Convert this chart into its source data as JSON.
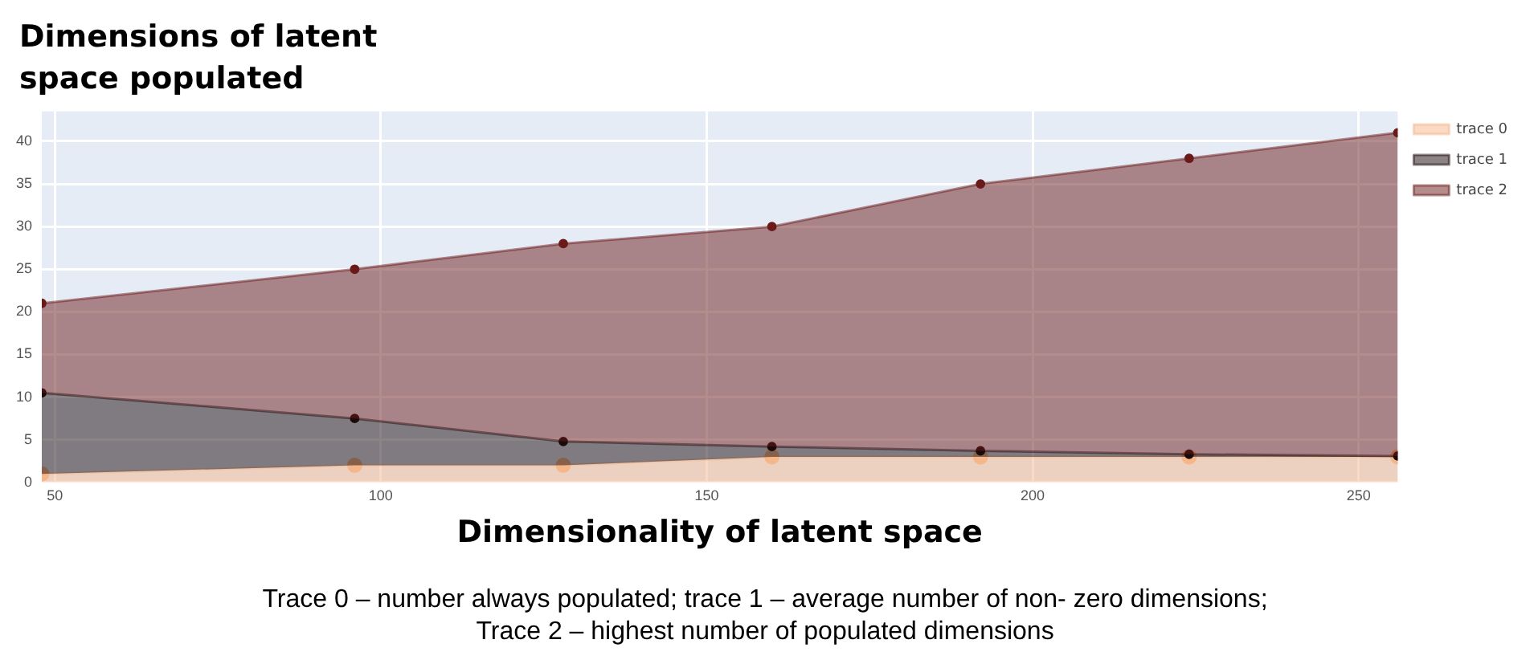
{
  "chart_data": {
    "type": "area",
    "title": "Dimensions of latent space populated",
    "xlabel": "Dimensionality of latent space",
    "annotations": [
      "Trace 0 – number always populated; trace 1  – average number of non- zero dimensions;",
      "Trace 2 – highest number of populated dimensions"
    ],
    "x": [
      48,
      96,
      128,
      160,
      192,
      224,
      256
    ],
    "series": [
      {
        "name": "trace 0",
        "color": "#f5b68a",
        "values": [
          1,
          2,
          2,
          3,
          3,
          3,
          3
        ]
      },
      {
        "name": "trace 1",
        "color": "#1a0a0a",
        "values": [
          10.5,
          7.5,
          4.8,
          4.2,
          3.7,
          3.3,
          3.1
        ]
      },
      {
        "name": "trace 2",
        "color": "#6b1a1a",
        "values": [
          21,
          25,
          28,
          30,
          35,
          38,
          41
        ]
      }
    ],
    "xlim": [
      48,
      256
    ],
    "ylim": [
      0,
      43.5
    ],
    "xticks": [
      50,
      100,
      150,
      200,
      250
    ],
    "yticks": [
      0,
      5,
      10,
      15,
      20,
      25,
      30,
      35,
      40
    ],
    "grid": true,
    "legend": "top right",
    "marker": "circle",
    "line_style": "solid"
  }
}
